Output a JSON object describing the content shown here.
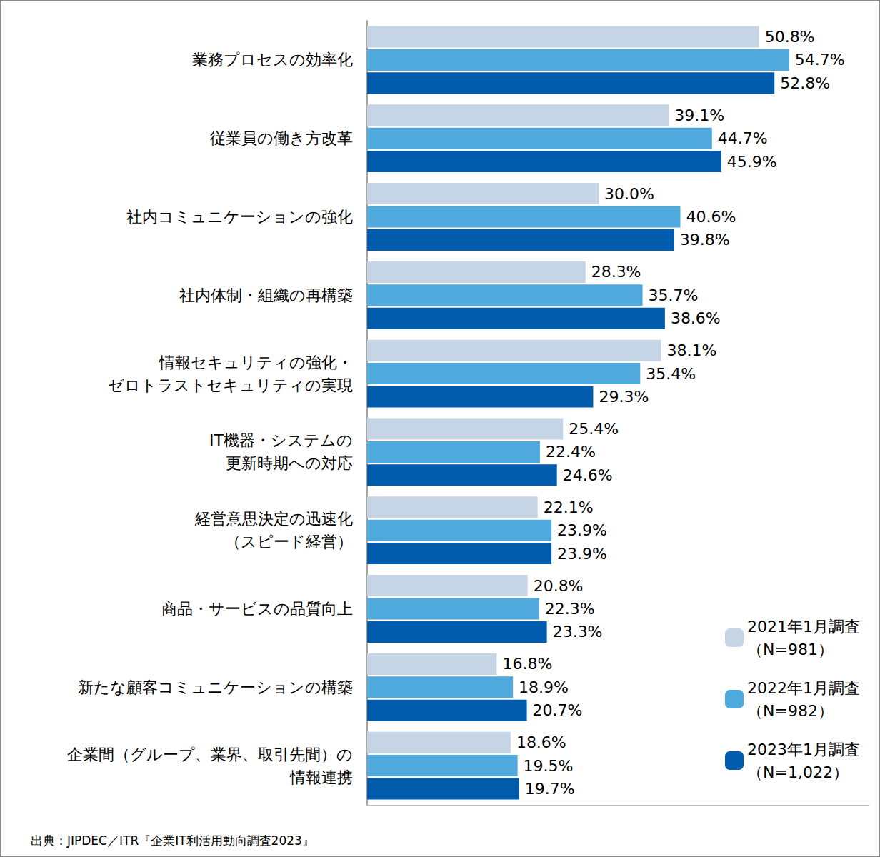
{
  "chart_data": {
    "type": "bar",
    "orientation": "horizontal",
    "categories": [
      "業務プロセスの効率化",
      "従業員の働き方改革",
      "社内コミュニケーションの強化",
      "社内体制・組織の再構築",
      "情報セキュリティの強化・\nゼロトラストセキュリティの実現",
      "IT機器・システムの\n更新時期への対応",
      "経営意思決定の迅速化\n（スピード経営）",
      "商品・サービスの品質向上",
      "新たな顧客コミュニケーションの構築",
      "企業間（グループ、業界、取引先間）の\n情報連携"
    ],
    "series": [
      {
        "name": "2021年1月調査\n（N=981）",
        "color": "#c5d5e6",
        "values": [
          50.8,
          39.1,
          30.0,
          28.3,
          38.1,
          25.4,
          22.1,
          20.8,
          16.8,
          18.6
        ],
        "value_labels": [
          "50.8%",
          "39.1%",
          "30.0%",
          "28.3%",
          "38.1%",
          "25.4%",
          "22.1%",
          "20.8%",
          "16.8%",
          "18.6%"
        ]
      },
      {
        "name": "2022年1月調査\n（N=982）",
        "color": "#4fa9dc",
        "values": [
          54.7,
          44.7,
          40.6,
          35.7,
          35.4,
          22.4,
          23.9,
          22.3,
          18.9,
          19.5
        ],
        "value_labels": [
          "54.7%",
          "44.7%",
          "40.6%",
          "35.7%",
          "35.4%",
          "22.4%",
          "23.9%",
          "22.3%",
          "18.9%",
          "19.5%"
        ]
      },
      {
        "name": "2023年1月調査\n（N=1,022）",
        "color": "#005bac",
        "values": [
          52.8,
          45.9,
          39.8,
          38.6,
          29.3,
          24.6,
          23.9,
          23.3,
          20.7,
          19.7
        ],
        "value_labels": [
          "52.8%",
          "45.9%",
          "39.8%",
          "38.6%",
          "29.3%",
          "24.6%",
          "23.9%",
          "23.3%",
          "20.7%",
          "19.7%"
        ]
      }
    ],
    "xlim": [
      0,
      65
    ],
    "grid": false,
    "legend": "bottom right",
    "data_labels": true,
    "tick_labels": "y",
    "annotations": [
      "出典：JIPDEC／ITR『企業IT利活用動向調査2023』"
    ]
  }
}
